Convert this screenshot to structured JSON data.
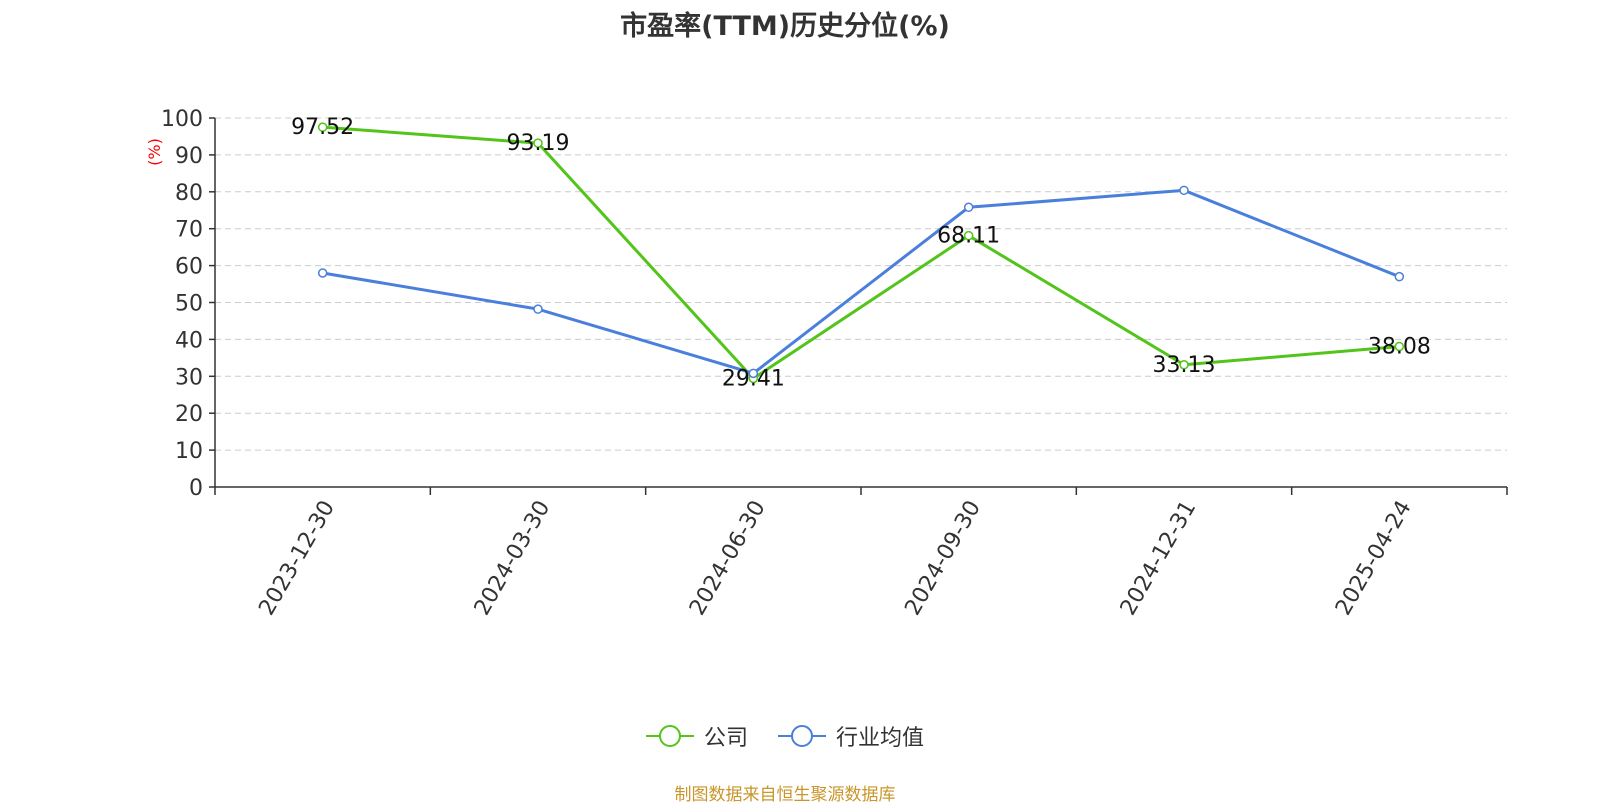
{
  "chart_data": {
    "type": "line",
    "title": "市盈率(TTM)历史分位(%)",
    "ylabel": "(%)",
    "ylim": [
      0,
      100
    ],
    "yticks": [
      0,
      10,
      20,
      30,
      40,
      50,
      60,
      70,
      80,
      90,
      100
    ],
    "categories": [
      "2023-12-30",
      "2024-03-30",
      "2024-06-30",
      "2024-09-30",
      "2024-12-31",
      "2025-04-24"
    ],
    "grid": true,
    "legend_position": "bottom",
    "series": [
      {
        "name": "公司",
        "color": "#52c41a",
        "values": [
          97.52,
          93.19,
          29.41,
          68.11,
          33.13,
          38.08
        ],
        "show_labels": true
      },
      {
        "name": "行业均值",
        "color": "#4a7fdc",
        "values": [
          58.0,
          48.2,
          30.8,
          75.8,
          80.4,
          57.0
        ],
        "show_labels": false
      }
    ]
  },
  "source_note": "制图数据来自恒生聚源数据库"
}
